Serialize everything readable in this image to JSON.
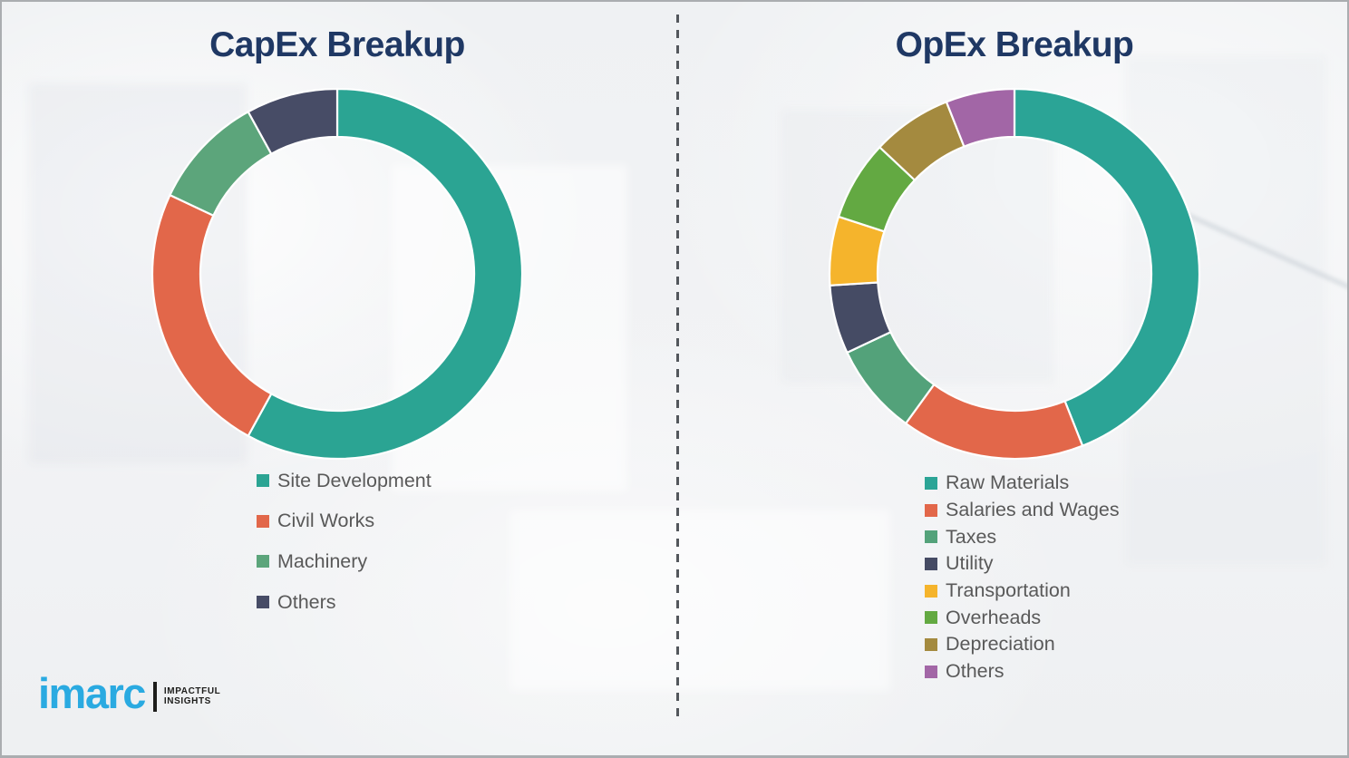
{
  "chart_data": [
    {
      "type": "pie",
      "subtype": "donut",
      "title": "CapEx Breakup",
      "labels": [
        "Site Development",
        "Civil Works",
        "Machinery",
        "Others"
      ],
      "values": [
        58,
        24,
        10,
        8
      ],
      "colors": [
        "#2BA493",
        "#E2674A",
        "#5CA57B",
        "#474C66"
      ],
      "start_angle_deg": 0,
      "direction": "clockwise",
      "legend_position": "below-left",
      "note": "values are percentages estimated from arc angles; no numeric labels shown in image"
    },
    {
      "type": "pie",
      "subtype": "donut",
      "title": "OpEx Breakup",
      "labels": [
        "Raw Materials",
        "Salaries and Wages",
        "Taxes",
        "Utility",
        "Transportation",
        "Overheads",
        "Depreciation",
        "Others"
      ],
      "values": [
        44,
        16,
        8,
        6,
        6,
        7,
        7,
        6
      ],
      "colors": [
        "#2BA496",
        "#E2674A",
        "#53A27A",
        "#454B64",
        "#F5B42C",
        "#63A942",
        "#A48A3F",
        "#A266A6"
      ],
      "start_angle_deg": 0,
      "direction": "clockwise",
      "legend_position": "below-left",
      "note": "values are percentages estimated from arc angles; no numeric labels shown in image"
    }
  ],
  "branding": {
    "logo_text": "imarc",
    "tagline_line1": "IMPACTFUL",
    "tagline_line2": "INSIGHTS"
  },
  "theme": {
    "title_color": "#1F3864",
    "legend_text_color": "#595959",
    "logo_blue": "#2AAAE1",
    "divider_color": "#53575C",
    "background_color": "#F0F1F3",
    "segment_gap_color": "#FFFFFF"
  }
}
